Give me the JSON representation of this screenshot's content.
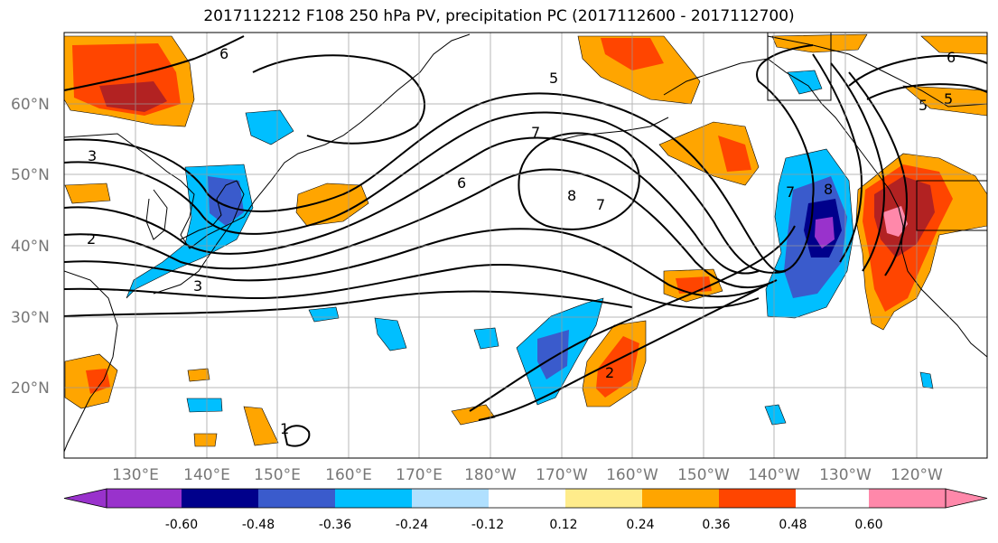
{
  "title": "2017112212 F108 250 hPa PV, precipitation PC (2017112600 - 2017112700)",
  "map": {
    "lat_labels": [
      "60°N",
      "50°N",
      "40°N",
      "30°N",
      "20°N"
    ],
    "lon_labels": [
      "130°E",
      "140°E",
      "150°E",
      "160°E",
      "170°E",
      "180°W",
      "170°W",
      "160°W",
      "150°W",
      "140°W",
      "130°W",
      "120°W"
    ],
    "pv_contour_labels": [
      "3",
      "2",
      "6",
      "5",
      "7",
      "6",
      "8",
      "7",
      "8",
      "5",
      "6",
      "5",
      "7",
      "2",
      "1",
      "3"
    ]
  },
  "colorbar": {
    "colors": [
      "#9932cc",
      "#00008b",
      "#3a5bcc",
      "#00bfff",
      "#b0e0ff",
      "#ffffff",
      "#ffec8b",
      "#ffa500",
      "#ff4500",
      "#b22222",
      "#ff88aa"
    ],
    "tick_labels": [
      "-0.60",
      "-0.48",
      "-0.36",
      "-0.24",
      "-0.12",
      "0.12",
      "0.24",
      "0.36",
      "0.48",
      "0.60"
    ]
  }
}
